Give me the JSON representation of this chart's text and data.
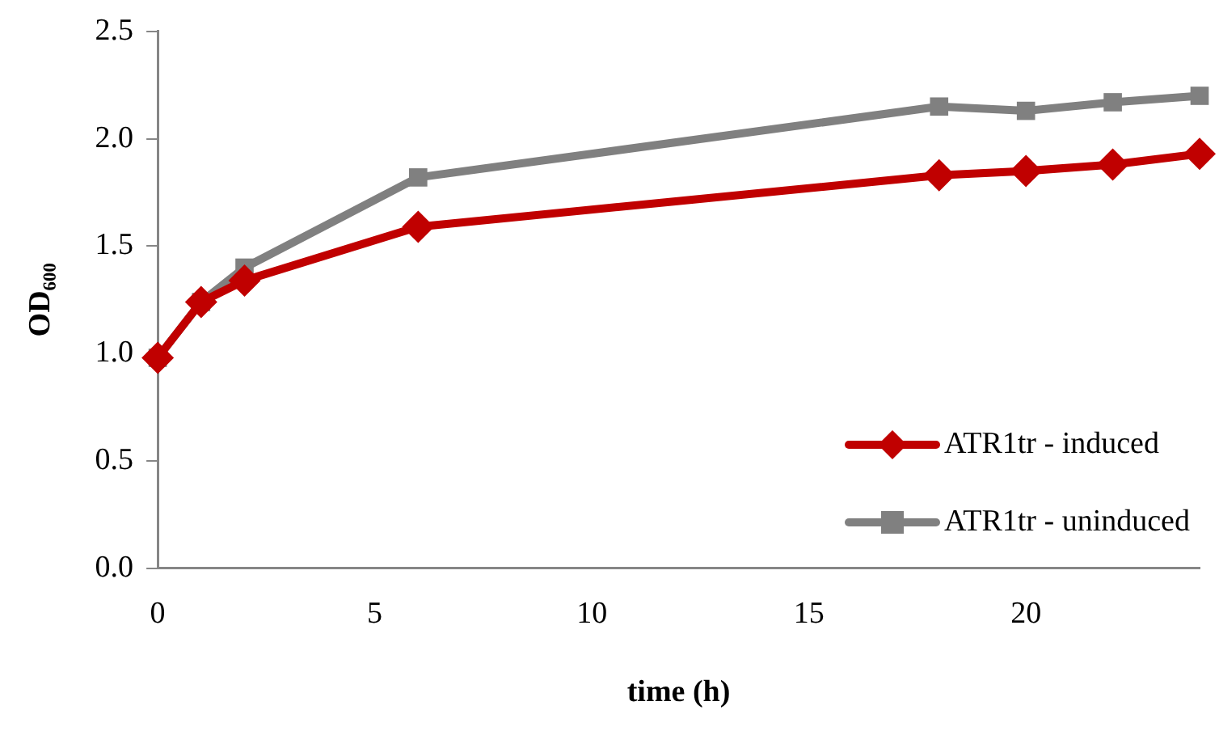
{
  "chart_data": {
    "type": "line",
    "xlabel": "time (h)",
    "ylabel": "OD₆₀₀",
    "x": [
      0,
      1,
      2,
      6,
      18,
      20,
      22,
      24
    ],
    "series": [
      {
        "name": "ATR1tr - induced",
        "color": "#c00000",
        "marker": "diamond",
        "values": [
          0.98,
          1.24,
          1.34,
          1.59,
          1.83,
          1.85,
          1.88,
          1.93
        ]
      },
      {
        "name": "ATR1tr - uninduced",
        "color": "#808080",
        "marker": "square",
        "values": [
          0.98,
          1.24,
          1.4,
          1.82,
          2.15,
          2.13,
          2.17,
          2.2
        ]
      }
    ],
    "xlim": [
      0,
      24
    ],
    "xticks": [
      0,
      5,
      10,
      15,
      20
    ],
    "ylim": [
      0,
      2.5
    ],
    "yticks": [
      {
        "value": 0,
        "label": "0.0"
      },
      0.5,
      {
        "value": 1,
        "label": "1.0"
      },
      1.5,
      {
        "value": 2,
        "label": "2.0"
      },
      2.5
    ],
    "grid": false,
    "legend": "bottom right",
    "line_style": "solid"
  }
}
